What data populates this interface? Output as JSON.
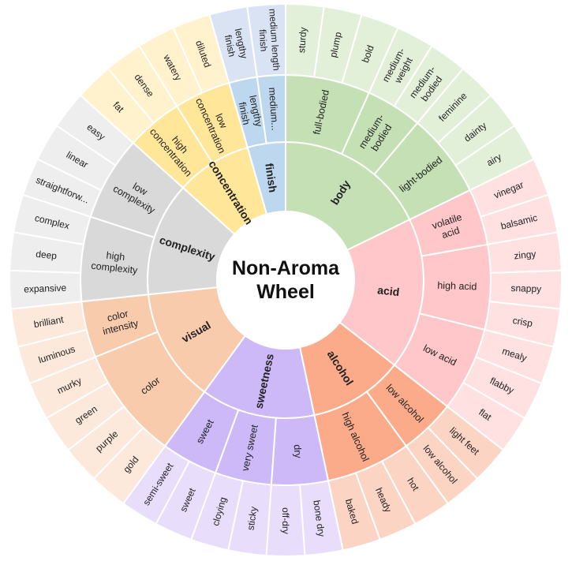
{
  "title": [
    "Non-Aroma",
    "Wheel"
  ],
  "categories": [
    {
      "name": "body",
      "color": "#c5e0b4",
      "light": "#e2f0d9",
      "subs": [
        {
          "name": "full-bodied",
          "outer": [
            "sturdy",
            "plump",
            "bold"
          ]
        },
        {
          "name": "medium-bodied",
          "outer": [
            "medium-weight",
            "medium-bodied"
          ]
        },
        {
          "name": "light-bodied",
          "outer": [
            "feminine",
            "dainty",
            "airy"
          ]
        }
      ]
    },
    {
      "name": "acid",
      "color": "#ffc7c9",
      "light": "#ffe1e1",
      "subs": [
        {
          "name": "volatile acid",
          "outer": [
            "vinegar",
            "balsamic"
          ]
        },
        {
          "name": "high acid",
          "outer": [
            "zingy",
            "snappy",
            "crisp"
          ]
        },
        {
          "name": "low acid",
          "outer": [
            "mealy",
            "flabby",
            "flat"
          ]
        }
      ]
    },
    {
      "name": "alcohol",
      "color": "#fbab8a",
      "light": "#fcd4c3",
      "subs": [
        {
          "name": "low alcohol",
          "outer": [
            "light feet",
            "low alcohol"
          ]
        },
        {
          "name": "high alcohol",
          "outer": [
            "hot",
            "heady",
            "baked"
          ]
        }
      ]
    },
    {
      "name": "sweetness",
      "color": "#cdb8f8",
      "light": "#e8defc",
      "subs": [
        {
          "name": "dry",
          "outer": [
            "bone dry",
            "off-dry"
          ]
        },
        {
          "name": "very sweet",
          "outer": [
            "sticky",
            "cloying"
          ]
        },
        {
          "name": "sweet",
          "outer": [
            "sweet",
            "semi-sweet"
          ]
        }
      ]
    },
    {
      "name": "visual",
      "color": "#f8cbad",
      "light": "#fce9dc",
      "subs": [
        {
          "name": "color",
          "outer": [
            "gold",
            "purple",
            "green",
            "murky"
          ]
        },
        {
          "name": "color intensity",
          "outer": [
            "luminous",
            "brilliant"
          ]
        }
      ]
    },
    {
      "name": "complexity",
      "color": "#d9d9d9",
      "light": "#eeeeee",
      "subs": [
        {
          "name": "high complexity",
          "outer": [
            "expansive",
            "deep",
            "complex"
          ]
        },
        {
          "name": "low complexity",
          "outer": [
            "straightforw...",
            "linear",
            "easy"
          ]
        }
      ]
    },
    {
      "name": "concentration",
      "color": "#ffe699",
      "light": "#fff2cc",
      "subs": [
        {
          "name": "high concentration",
          "outer": [
            "fat",
            "dense"
          ]
        },
        {
          "name": "low concentration",
          "outer": [
            "watery",
            "diluted"
          ]
        }
      ]
    },
    {
      "name": "finish",
      "color": "#bdd7ee",
      "light": "#dae3f3",
      "subs": [
        {
          "name": "lengthy finish",
          "outer": [
            "lengthy finish"
          ]
        },
        {
          "name": "medium...",
          "outer": [
            "medium length finish"
          ]
        }
      ]
    }
  ]
}
